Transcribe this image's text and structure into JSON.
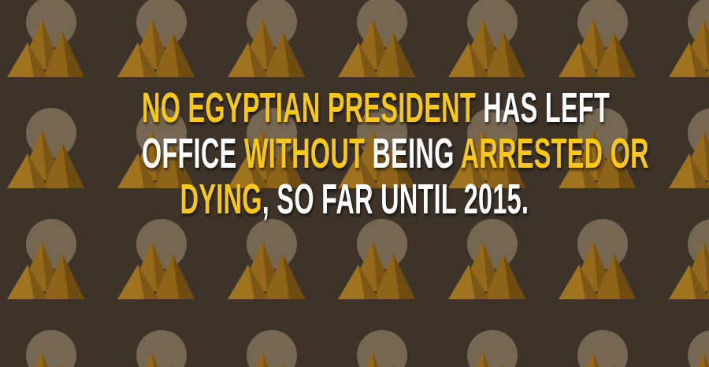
{
  "headline": {
    "lines": [
      {
        "segments": [
          {
            "text": "NO EGYPTIAN PRESIDENT",
            "color": "#f7c815"
          },
          {
            "text": " HAS LEFT",
            "color": "#ffffff"
          }
        ]
      },
      {
        "segments": [
          {
            "text": "OFFICE ",
            "color": "#ffffff"
          },
          {
            "text": "WITHOUT",
            "color": "#f7c815"
          },
          {
            "text": " BEING ",
            "color": "#ffffff"
          },
          {
            "text": "ARRESTED OR",
            "color": "#f7c815"
          }
        ]
      },
      {
        "segments": [
          {
            "text": "DYING",
            "color": "#f7c815"
          },
          {
            "text": ", SO FAR UNTIL 2015.",
            "color": "#ffffff"
          }
        ]
      }
    ]
  }
}
